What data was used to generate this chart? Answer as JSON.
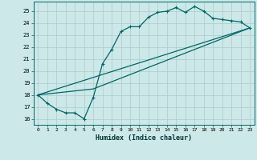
{
  "xlabel": "Humidex (Indice chaleur)",
  "bg_color": "#cce8e8",
  "grid_color": "#aacccc",
  "line_color": "#006666",
  "xlim": [
    -0.5,
    23.5
  ],
  "ylim": [
    15.5,
    25.8
  ],
  "xticks": [
    0,
    1,
    2,
    3,
    4,
    5,
    6,
    7,
    8,
    9,
    10,
    11,
    12,
    13,
    14,
    15,
    16,
    17,
    18,
    19,
    20,
    21,
    22,
    23
  ],
  "yticks": [
    16,
    17,
    18,
    19,
    20,
    21,
    22,
    23,
    24,
    25
  ],
  "line1_x": [
    0,
    1,
    2,
    3,
    4,
    5,
    6,
    7,
    8,
    9,
    10,
    11,
    12,
    13,
    14,
    15,
    16,
    17,
    18,
    19,
    20,
    21,
    22,
    23
  ],
  "line1_y": [
    18.0,
    17.3,
    16.8,
    16.5,
    16.5,
    16.0,
    17.8,
    20.6,
    21.8,
    23.3,
    23.7,
    23.7,
    24.5,
    24.9,
    25.0,
    25.3,
    24.9,
    25.4,
    25.0,
    24.4,
    24.3,
    24.2,
    24.1,
    23.6
  ],
  "line2_x": [
    0,
    23
  ],
  "line2_y": [
    18.0,
    23.6
  ],
  "line3_x": [
    0,
    6,
    23
  ],
  "line3_y": [
    18.0,
    18.5,
    23.6
  ]
}
